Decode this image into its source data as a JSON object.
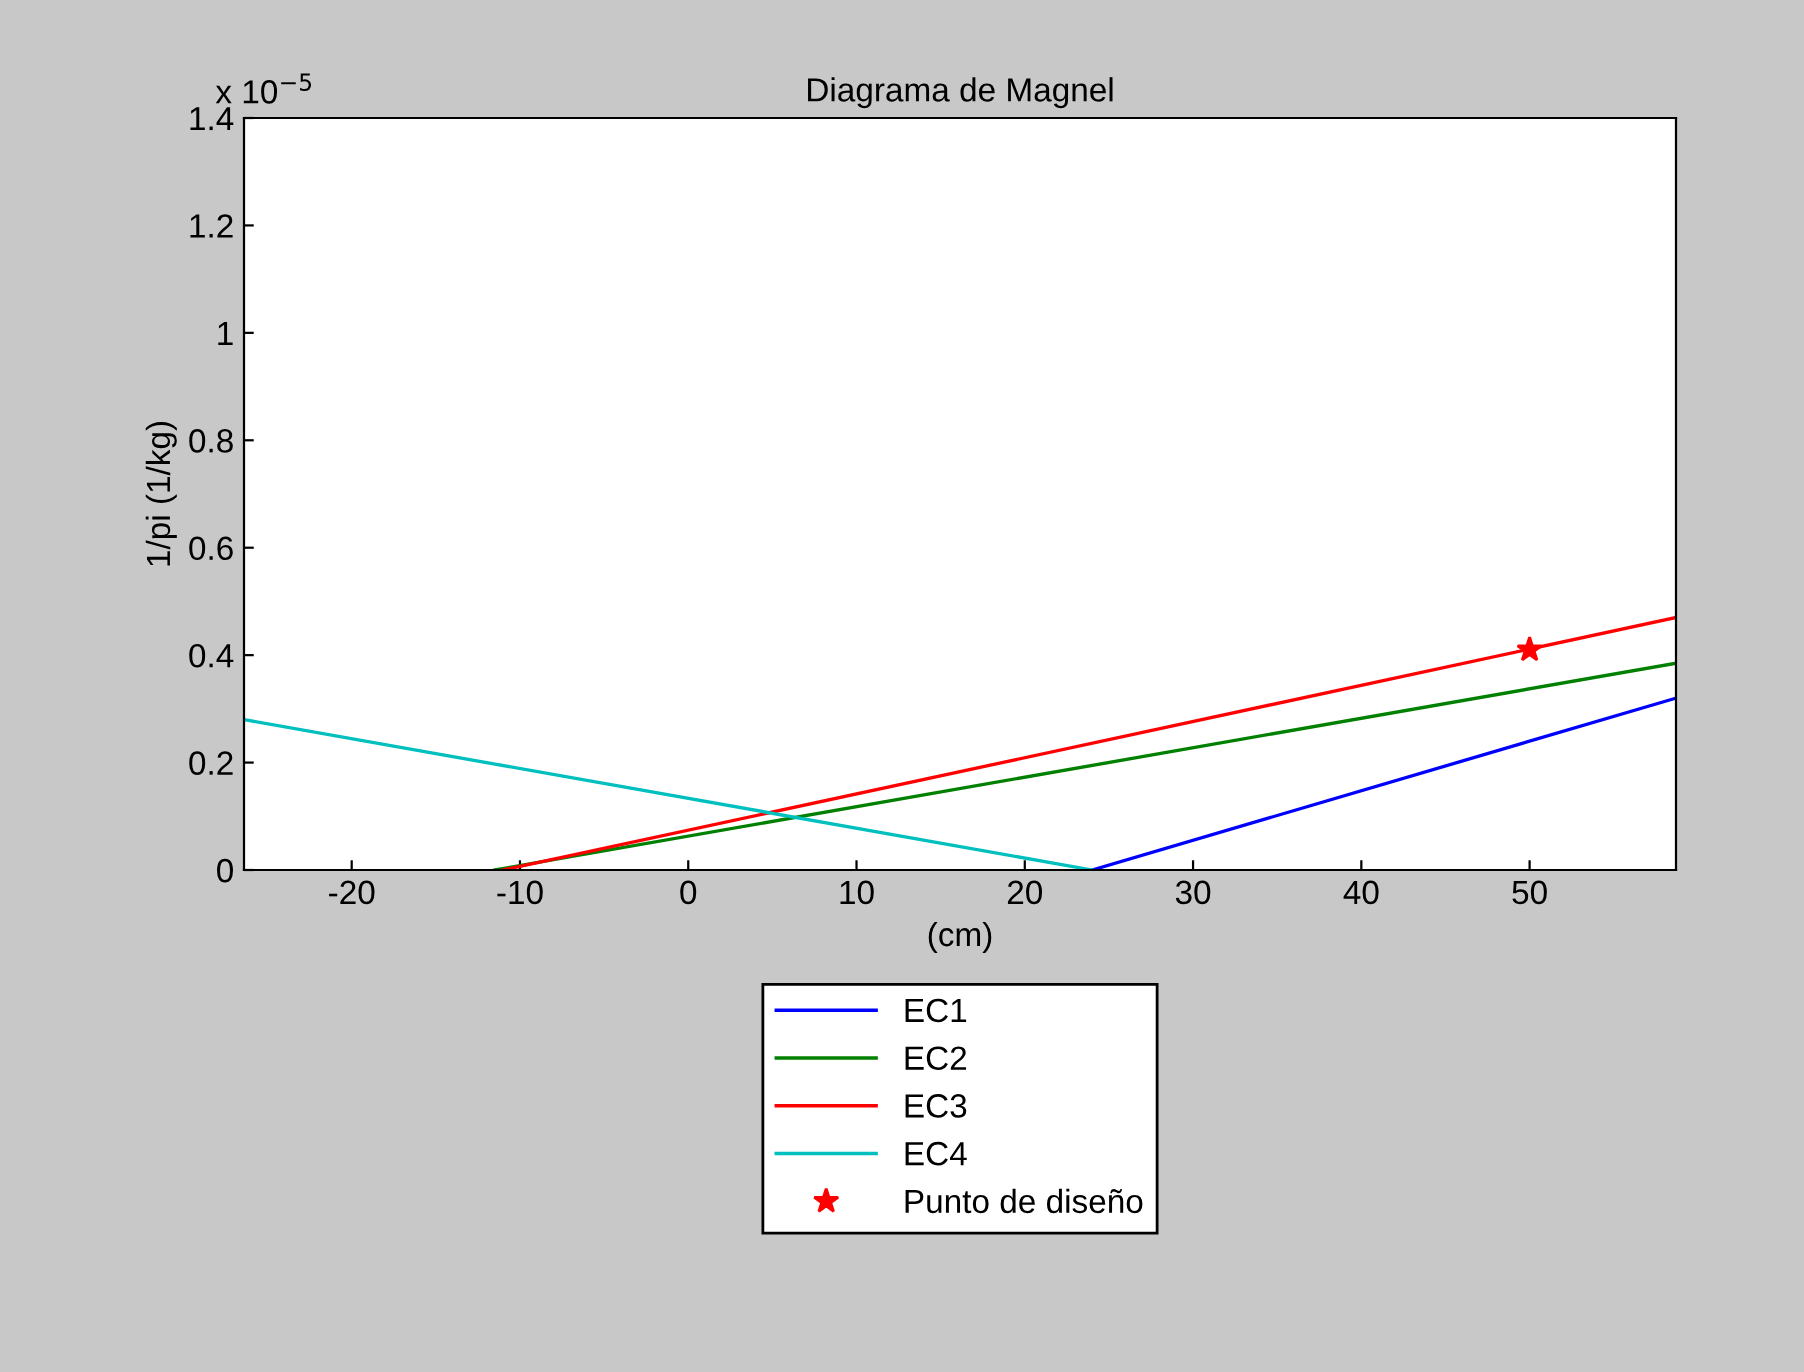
{
  "chart_data": {
    "type": "line",
    "title": "Diagrama de Magnel",
    "xlabel": "(cm)",
    "ylabel": "1/pi (1/kg)",
    "annotations": [
      "x 10$^{−5}$"
    ],
    "xlim": [
      -26.4,
      58.7
    ],
    "xticks": [
      -20,
      -10,
      0,
      10,
      20,
      30,
      40,
      50
    ],
    "ylim": [
      0,
      1.4
    ],
    "yticks": [
      0,
      0.2,
      0.4,
      0.6,
      0.8,
      1,
      1.2,
      1.4
    ],
    "grid": false,
    "legend": "bottom",
    "series": [
      {
        "name": "EC1",
        "color": "#0000ff",
        "x": [
          24,
          58.7
        ],
        "values": [
          0,
          0.32
        ]
      },
      {
        "name": "EC2",
        "color": "#008000",
        "x": [
          -11.5,
          58.7
        ],
        "values": [
          0,
          0.385
        ]
      },
      {
        "name": "EC3",
        "color": "#ff0000",
        "x": [
          -11,
          58.7
        ],
        "values": [
          0,
          0.47
        ]
      },
      {
        "name": "EC4",
        "color": "#00bfbf",
        "x": [
          -26.4,
          24
        ],
        "values": [
          0.28,
          0
        ]
      },
      {
        "name": "Punto de diseño",
        "type": "scatter",
        "marker": "star",
        "color": "#ff0000",
        "x": [
          50
        ],
        "values": [
          0.41
        ]
      }
    ]
  }
}
